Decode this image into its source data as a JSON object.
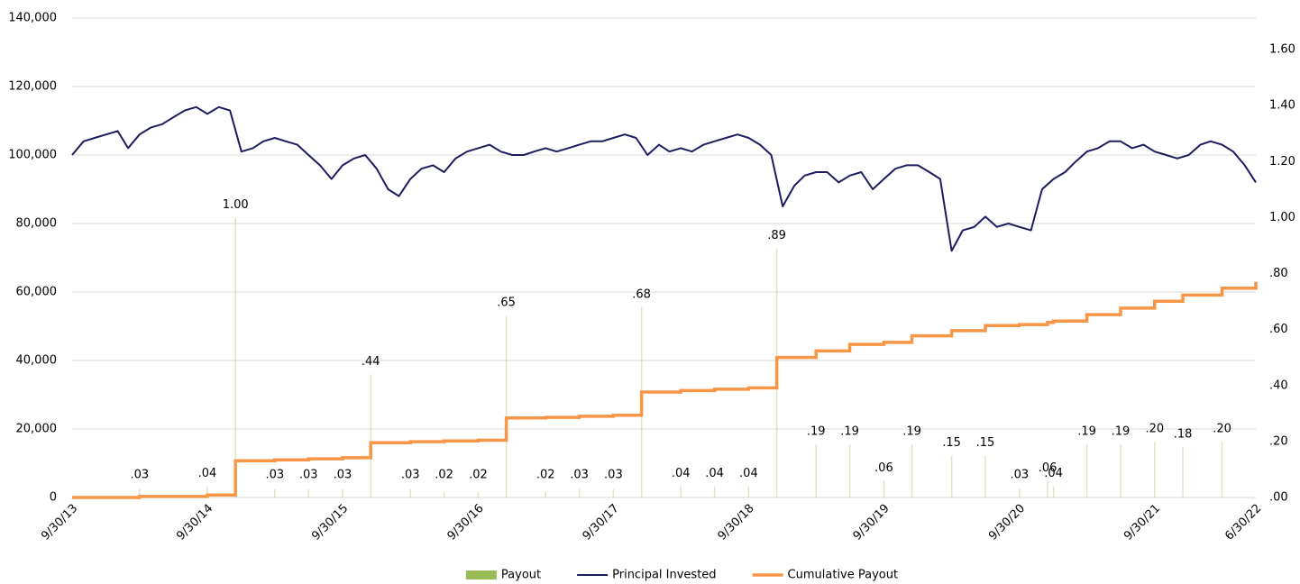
{
  "chart_data": {
    "type": "combo",
    "xlim": [
      "9/30/13",
      "6/30/22"
    ],
    "xticks": [
      "9/30/13",
      "9/30/14",
      "9/30/15",
      "9/30/16",
      "9/30/17",
      "9/30/18",
      "9/30/19",
      "9/30/20",
      "9/30/21",
      "6/30/22"
    ],
    "ylim": [
      0,
      140000
    ],
    "yticks": [
      0,
      {
        "value": 20000,
        "label": "20,000"
      },
      {
        "value": 40000,
        "label": "40,000"
      },
      {
        "value": 60000,
        "label": "60,000"
      },
      {
        "value": 80000,
        "label": "80,000"
      },
      {
        "value": 100000,
        "label": "100,000"
      },
      {
        "value": 120000,
        "label": "120,000"
      },
      {
        "value": 140000,
        "label": "140,000"
      }
    ],
    "y2lim": [
      0,
      1.713
    ],
    "y2ticks": [
      {
        "value": 0,
        "label": ".00"
      },
      {
        "value": 0.2,
        "label": ".20"
      },
      {
        "value": 0.4,
        "label": ".40"
      },
      {
        "value": 0.6,
        "label": ".60"
      },
      {
        "value": 0.8,
        "label": ".80"
      },
      {
        "value": 1,
        "label": "1.00"
      },
      {
        "value": 1.2,
        "label": "1.20"
      },
      {
        "value": 1.4,
        "label": "1.40"
      },
      {
        "value": 1.6,
        "label": "1.60"
      }
    ],
    "grid": true,
    "legend": "bottom",
    "series": [
      {
        "name": "Payout",
        "type": "bar",
        "axis": "y2",
        "color": "#9bbb59",
        "x": [
          "3/31/14",
          "9/30/14",
          "12/15/14",
          "3/31/15",
          "6/30/15",
          "9/30/15",
          "12/15/15",
          "3/31/16",
          "6/30/16",
          "9/30/16",
          "12/15/16",
          "3/31/17",
          "6/30/17",
          "9/30/17",
          "12/15/17",
          "3/31/18",
          "6/30/18",
          "9/30/18",
          "12/15/18",
          "3/31/19",
          "6/30/19",
          "9/30/19",
          "12/15/19",
          "3/31/20",
          "6/30/20",
          "9/30/20",
          "12/15/20",
          "12/31/20",
          "3/31/21",
          "6/30/21",
          "9/30/21",
          "12/15/21",
          "3/31/22"
        ],
        "values": [
          0.03,
          0.04,
          1,
          0.03,
          0.03,
          0.03,
          0.44,
          0.03,
          0.02,
          0.02,
          0.65,
          0.02,
          0.03,
          0.03,
          0.68,
          0.04,
          0.04,
          0.04,
          0.89,
          0.19,
          0.19,
          0.06,
          0.19,
          0.15,
          0.15,
          0.03,
          0.06,
          0.04,
          0.19,
          0.19,
          0.2,
          0.18,
          0.2
        ],
        "value_labels": [
          ".03",
          ".04",
          "1.00",
          ".03",
          ".03",
          ".03",
          ".44",
          ".03",
          ".02",
          ".02",
          ".65",
          ".02",
          ".03",
          ".03",
          ".68",
          ".04",
          ".04",
          ".04",
          ".89",
          ".19",
          ".19",
          ".06",
          ".19",
          ".15",
          ".15",
          ".03",
          ".06",
          ".04",
          ".19",
          ".19",
          ".20",
          ".18",
          ".20"
        ]
      },
      {
        "name": "Principal Invested",
        "type": "line",
        "color": "#1c1c5e",
        "x": [
          "9/30/13",
          "10/31/13",
          "11/30/13",
          "12/31/13",
          "1/31/14",
          "2/28/14",
          "3/31/14",
          "4/30/14",
          "5/31/14",
          "6/30/14",
          "7/31/14",
          "8/31/14",
          "9/30/14",
          "10/31/14",
          "11/30/14",
          "12/31/14",
          "1/31/15",
          "2/28/15",
          "3/31/15",
          "4/30/15",
          "5/31/15",
          "6/30/15",
          "7/31/15",
          "8/31/15",
          "9/30/15",
          "10/31/15",
          "11/30/15",
          "12/31/15",
          "1/31/16",
          "2/29/16",
          "3/31/16",
          "4/30/16",
          "5/31/16",
          "6/30/16",
          "7/31/16",
          "8/31/16",
          "9/30/16",
          "10/31/16",
          "11/30/16",
          "12/31/16",
          "1/31/17",
          "2/28/17",
          "3/31/17",
          "4/30/17",
          "5/31/17",
          "6/30/17",
          "7/31/17",
          "8/31/17",
          "9/30/17",
          "10/31/17",
          "11/30/17",
          "12/31/17",
          "1/31/18",
          "2/28/18",
          "3/31/18",
          "4/30/18",
          "5/31/18",
          "6/30/18",
          "7/31/18",
          "8/31/18",
          "9/30/18",
          "10/31/18",
          "11/30/18",
          "12/31/18",
          "1/31/19",
          "2/28/19",
          "3/31/19",
          "4/30/19",
          "5/31/19",
          "6/30/19",
          "7/31/19",
          "8/31/19",
          "9/30/19",
          "10/31/19",
          "11/30/19",
          "12/31/19",
          "1/31/20",
          "2/29/20",
          "3/31/20",
          "4/30/20",
          "5/31/20",
          "6/30/20",
          "7/31/20",
          "8/31/20",
          "9/30/20",
          "10/31/20",
          "11/30/20",
          "12/31/20",
          "1/31/21",
          "2/28/21",
          "3/31/21",
          "4/30/21",
          "5/31/21",
          "6/30/21",
          "7/31/21",
          "8/31/21",
          "9/30/21",
          "10/31/21",
          "11/30/21",
          "12/31/21",
          "1/31/22",
          "2/28/22",
          "3/31/22",
          "4/30/22",
          "5/31/22",
          "6/30/22"
        ],
        "values": [
          100000,
          104000,
          105000,
          106000,
          107000,
          102000,
          106000,
          108000,
          109000,
          111000,
          113000,
          114000,
          112000,
          114000,
          113000,
          101000,
          102000,
          104000,
          105000,
          104000,
          103000,
          100000,
          97000,
          93000,
          97000,
          99000,
          100000,
          96000,
          90000,
          88000,
          93000,
          96000,
          97000,
          95000,
          99000,
          101000,
          102000,
          103000,
          101000,
          100000,
          100000,
          101000,
          102000,
          101000,
          102000,
          103000,
          104000,
          104000,
          105000,
          106000,
          105000,
          100000,
          103000,
          101000,
          102000,
          101000,
          103000,
          104000,
          105000,
          106000,
          105000,
          103000,
          100000,
          85000,
          91000,
          94000,
          95000,
          95000,
          92000,
          94000,
          95000,
          90000,
          93000,
          96000,
          97000,
          97000,
          95000,
          93000,
          72000,
          78000,
          79000,
          82000,
          79000,
          80000,
          79000,
          78000,
          90000,
          93000,
          95000,
          98000,
          101000,
          102000,
          104000,
          104000,
          102000,
          103000,
          101000,
          100000,
          99000,
          100000,
          103000,
          104000,
          103000,
          101000,
          97000,
          92000
        ]
      },
      {
        "name": "Cumulative Payout",
        "type": "step",
        "color": "#f79646",
        "x": [
          "9/30/13",
          "3/31/14",
          "9/30/14",
          "12/15/14",
          "3/31/15",
          "6/30/15",
          "9/30/15",
          "12/15/15",
          "3/31/16",
          "6/30/16",
          "9/30/16",
          "12/15/16",
          "3/31/17",
          "6/30/17",
          "9/30/17",
          "12/15/17",
          "3/31/18",
          "6/30/18",
          "9/30/18",
          "12/15/18",
          "3/31/19",
          "6/30/19",
          "9/30/19",
          "12/15/19",
          "3/31/20",
          "6/30/20",
          "9/30/20",
          "12/15/20",
          "12/31/20",
          "3/31/21",
          "6/30/21",
          "9/30/21",
          "12/15/21",
          "3/31/22",
          "6/30/22"
        ],
        "values": [
          0,
          300,
          700,
          10700,
          11000,
          11300,
          11600,
          16000,
          16300,
          16500,
          16700,
          23200,
          23400,
          23700,
          24000,
          30800,
          31200,
          31600,
          32000,
          40900,
          42800,
          44700,
          45300,
          47200,
          48700,
          50200,
          50500,
          51100,
          51500,
          53400,
          55300,
          57300,
          59100,
          61100,
          63000
        ]
      }
    ]
  }
}
